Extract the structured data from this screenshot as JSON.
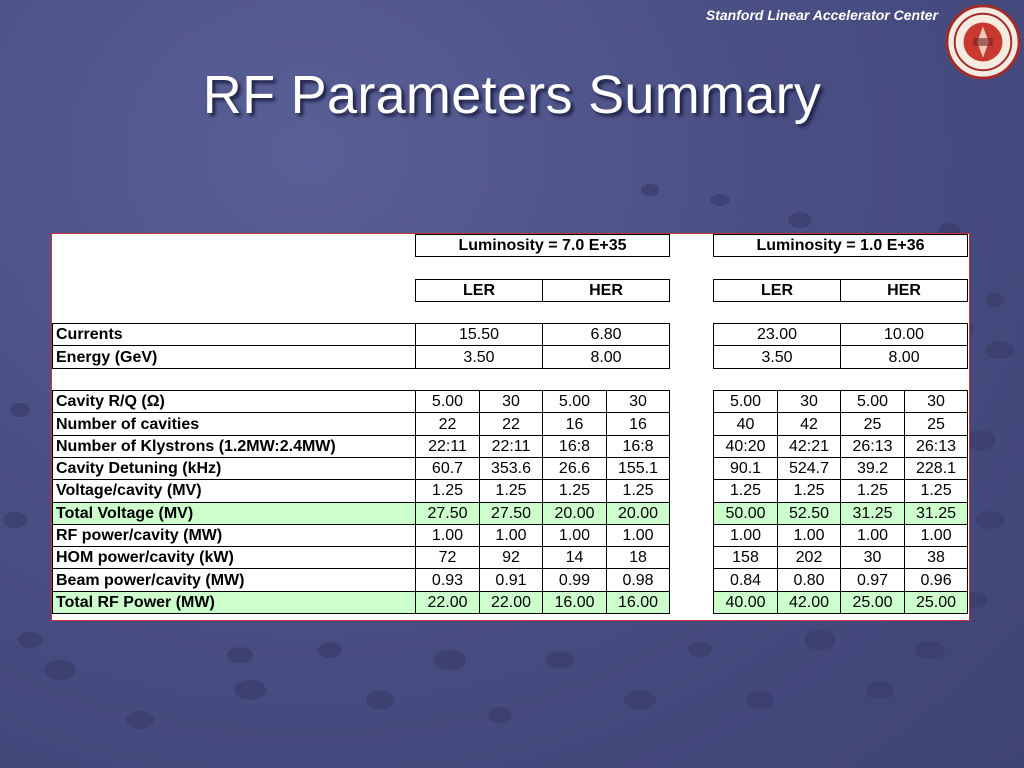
{
  "header": {
    "org": "Stanford Linear Accelerator Center",
    "title": "RF Parameters Summary",
    "logo_icon": "stanford-seal-icon"
  },
  "colors": {
    "background": "#4a4f84",
    "highlight_row": "#ccffcc",
    "sheet_border": "#c83232"
  },
  "table": {
    "group_headers": [
      "Luminosity = 7.0 E+35",
      "Luminosity = 1.0 E+36"
    ],
    "ring_headers": [
      "LER",
      "HER",
      "LER",
      "HER"
    ],
    "summary_rows": [
      {
        "label": "Currents",
        "values": [
          "15.50",
          "6.80",
          "23.00",
          "10.00"
        ]
      },
      {
        "label": "Energy (GeV)",
        "values": [
          "3.50",
          "8.00",
          "3.50",
          "8.00"
        ]
      }
    ],
    "detail_rows": [
      {
        "label": "Cavity R/Q (Ω)",
        "values": [
          "5.00",
          "30",
          "5.00",
          "30",
          "5.00",
          "30",
          "5.00",
          "30"
        ],
        "highlight": false
      },
      {
        "label": "Number of cavities",
        "values": [
          "22",
          "22",
          "16",
          "16",
          "40",
          "42",
          "25",
          "25"
        ],
        "highlight": false
      },
      {
        "label": "Number of Klystrons (1.2MW:2.4MW)",
        "values": [
          "22:11",
          "22:11",
          "16:8",
          "16:8",
          "40:20",
          "42:21",
          "26:13",
          "26:13"
        ],
        "highlight": false
      },
      {
        "label": "Cavity Detuning (kHz)",
        "values": [
          "60.7",
          "353.6",
          "26.6",
          "155.1",
          "90.1",
          "524.7",
          "39.2",
          "228.1"
        ],
        "highlight": false
      },
      {
        "label": "Voltage/cavity (MV)",
        "values": [
          "1.25",
          "1.25",
          "1.25",
          "1.25",
          "1.25",
          "1.25",
          "1.25",
          "1.25"
        ],
        "highlight": false
      },
      {
        "label": "Total Voltage (MV)",
        "values": [
          "27.50",
          "27.50",
          "20.00",
          "20.00",
          "50.00",
          "52.50",
          "31.25",
          "31.25"
        ],
        "highlight": true
      },
      {
        "label": "RF power/cavity (MW)",
        "values": [
          "1.00",
          "1.00",
          "1.00",
          "1.00",
          "1.00",
          "1.00",
          "1.00",
          "1.00"
        ],
        "highlight": false
      },
      {
        "label": "HOM power/cavity (kW)",
        "values": [
          "72",
          "92",
          "14",
          "18",
          "158",
          "202",
          "30",
          "38"
        ],
        "highlight": false
      },
      {
        "label": "Beam power/cavity (MW)",
        "values": [
          "0.93",
          "0.91",
          "0.99",
          "0.98",
          "0.84",
          "0.80",
          "0.97",
          "0.96"
        ],
        "highlight": false
      },
      {
        "label": "Total RF Power (MW)",
        "values": [
          "22.00",
          "22.00",
          "16.00",
          "16.00",
          "40.00",
          "42.00",
          "25.00",
          "25.00"
        ],
        "highlight": true
      }
    ]
  }
}
